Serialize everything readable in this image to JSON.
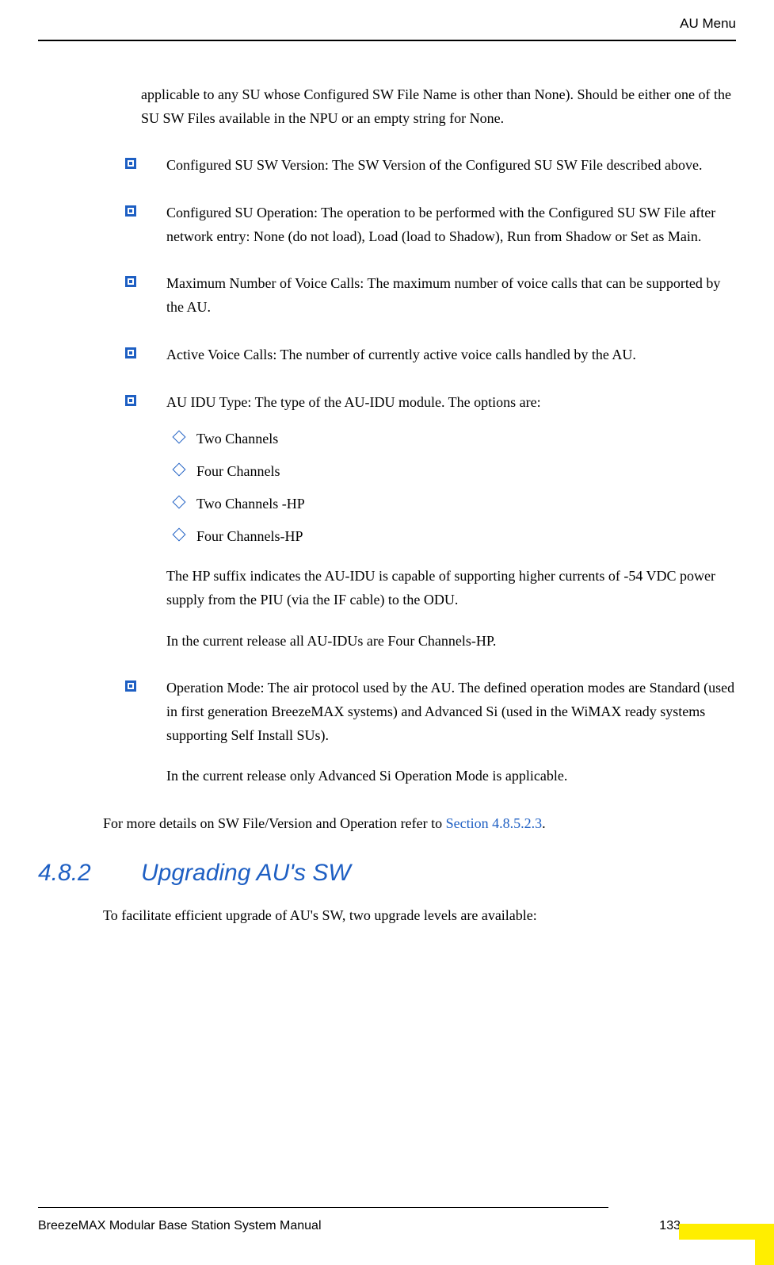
{
  "header": {
    "text": "AU Menu"
  },
  "content": {
    "intro": "applicable to any SU whose Configured SW File Name is other than None). Should be either one of the SU SW Files available in the NPU or an empty string for None.",
    "bullets": [
      {
        "text": "Configured SU SW Version: The SW Version of the Configured SU SW File described above."
      },
      {
        "text": "Configured SU Operation: The operation to be performed with the Configured SU SW File after network entry: None (do not load), Load (load to Shadow), Run from Shadow or Set as Main."
      },
      {
        "text": "Maximum Number of Voice Calls: The maximum number of voice calls that can be supported by the AU."
      },
      {
        "text": "Active Voice Calls: The number of currently active voice calls handled by the AU."
      },
      {
        "text": "AU IDU Type: The type of the AU-IDU module. The options are:",
        "subitems": [
          "Two Channels",
          "Four Channels",
          "Two Channels -HP",
          "Four Channels-HP"
        ],
        "continuation1": "The HP suffix indicates the AU-IDU is capable of supporting higher currents of -54 VDC power supply from the PIU (via the IF cable) to the ODU.",
        "continuation2": "In the current release all AU-IDUs are Four Channels-HP."
      },
      {
        "text": "Operation Mode: The air protocol used by the AU. The defined operation modes are Standard (used in first generation BreezeMAX systems) and Advanced Si (used in the WiMAX ready systems supporting Self Install SUs).",
        "continuation1": "In the current release only Advanced Si Operation Mode is applicable."
      }
    ],
    "closing_pre": "For more details on SW File/Version and Operation refer to ",
    "closing_link": "Section 4.8.5.2.3",
    "closing_post": "."
  },
  "section": {
    "number": "4.8.2",
    "title": "Upgrading AU's SW",
    "body": "To facilitate efficient upgrade of AU's SW, two upgrade levels are available:"
  },
  "footer": {
    "title": "BreezeMAX Modular Base Station System Manual",
    "page": "133"
  },
  "colors": {
    "accent": "#1e5fc3",
    "highlight": "#ffee00",
    "text": "#000000",
    "background": "#ffffff"
  }
}
